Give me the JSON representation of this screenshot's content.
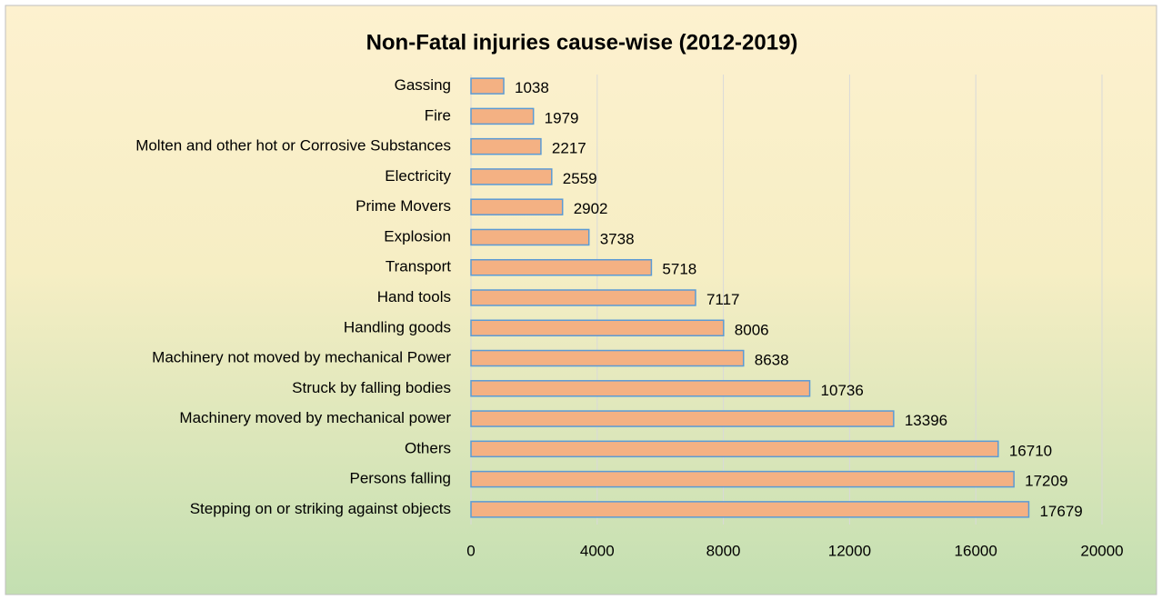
{
  "chart_data": {
    "type": "bar",
    "orientation": "horizontal",
    "title": "Non-Fatal injuries cause-wise (2012-2019)",
    "categories": [
      "Gassing",
      "Fire",
      "Molten and other hot or Corrosive Substances",
      "Electricity",
      "Prime Movers",
      "Explosion",
      "Transport",
      "Hand tools",
      "Handling goods",
      "Machinery not moved by mechanical Power",
      "Struck by falling bodies",
      "Machinery moved by mechanical power",
      "Others",
      "Persons falling",
      "Stepping on or striking against objects"
    ],
    "values": [
      1038,
      1979,
      2217,
      2559,
      2902,
      3738,
      5718,
      7117,
      8006,
      8638,
      10736,
      13396,
      16710,
      17209,
      17679
    ],
    "color": "#f4b183",
    "xlim": [
      0,
      20000
    ],
    "xticks": [
      0,
      4000,
      8000,
      12000,
      16000,
      20000
    ],
    "grid": true
  }
}
